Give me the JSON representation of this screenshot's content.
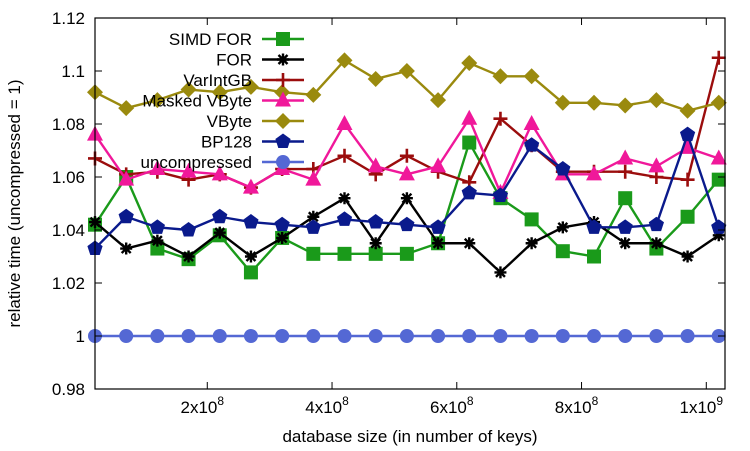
{
  "chart_data": {
    "type": "line",
    "xlabel": "database size (in number of keys)",
    "ylabel": "relative time (uncompressed = 1)",
    "xlim": [
      20000000,
      1030000000
    ],
    "ylim": [
      0.98,
      1.12
    ],
    "xticks": [
      {
        "value": 200000000,
        "mant": "2x10",
        "exp": "8"
      },
      {
        "value": 400000000,
        "mant": "4x10",
        "exp": "8"
      },
      {
        "value": 600000000,
        "mant": "6x10",
        "exp": "8"
      },
      {
        "value": 800000000,
        "mant": "8x10",
        "exp": "8"
      },
      {
        "value": 1000000000,
        "mant": "1x10",
        "exp": "9"
      }
    ],
    "yticks": [
      {
        "value": 0.98,
        "label": "0.98"
      },
      {
        "value": 1.0,
        "label": "1"
      },
      {
        "value": 1.02,
        "label": "1.02"
      },
      {
        "value": 1.04,
        "label": "1.04"
      },
      {
        "value": 1.06,
        "label": "1.06"
      },
      {
        "value": 1.08,
        "label": "1.08"
      },
      {
        "value": 1.1,
        "label": "1.1"
      },
      {
        "value": 1.12,
        "label": "1.12"
      }
    ],
    "grid": false,
    "legend_position": "top-left",
    "x": [
      20000000,
      70000000,
      120000000,
      170000000,
      220000000,
      270000000,
      320000000,
      370000000,
      420000000,
      470000000,
      520000000,
      570000000,
      620000000,
      670000000,
      720000000,
      770000000,
      820000000,
      870000000,
      920000000,
      970000000,
      1020000000
    ],
    "series": [
      {
        "name": "SIMD FOR",
        "marker": "square",
        "color": "#1a9a1a",
        "values": [
          1.042,
          1.06,
          1.033,
          1.029,
          1.038,
          1.024,
          1.037,
          1.031,
          1.031,
          1.031,
          1.031,
          1.035,
          1.073,
          1.052,
          1.044,
          1.032,
          1.03,
          1.052,
          1.033,
          1.045,
          1.059
        ]
      },
      {
        "name": "FOR",
        "marker": "asterisk",
        "color": "#000000",
        "values": [
          1.043,
          1.033,
          1.036,
          1.03,
          1.039,
          1.03,
          1.037,
          1.045,
          1.052,
          1.035,
          1.052,
          1.035,
          1.035,
          1.024,
          1.035,
          1.041,
          1.043,
          1.035,
          1.035,
          1.03,
          1.038
        ]
      },
      {
        "name": "VarIntGB",
        "marker": "plus",
        "color": "#9b0d0d",
        "values": [
          1.067,
          1.061,
          1.062,
          1.059,
          1.061,
          1.056,
          1.063,
          1.063,
          1.068,
          1.061,
          1.068,
          1.062,
          1.058,
          1.082,
          1.072,
          1.062,
          1.062,
          1.062,
          1.06,
          1.059,
          1.105
        ]
      },
      {
        "name": "Masked VByte",
        "marker": "triangle",
        "color": "#f0189a",
        "values": [
          1.076,
          1.059,
          1.063,
          1.062,
          1.061,
          1.056,
          1.063,
          1.059,
          1.08,
          1.064,
          1.061,
          1.064,
          1.082,
          1.054,
          1.08,
          1.061,
          1.061,
          1.067,
          1.064,
          1.071,
          1.067
        ]
      },
      {
        "name": "VByte",
        "marker": "diamond",
        "color": "#9a8a0e",
        "values": [
          1.092,
          1.086,
          1.089,
          1.093,
          1.092,
          1.094,
          1.092,
          1.091,
          1.104,
          1.097,
          1.1,
          1.089,
          1.103,
          1.098,
          1.098,
          1.088,
          1.088,
          1.087,
          1.089,
          1.085,
          1.088
        ]
      },
      {
        "name": "BP128",
        "marker": "pentagon",
        "color": "#0a1a8c",
        "values": [
          1.033,
          1.045,
          1.041,
          1.04,
          1.045,
          1.043,
          1.042,
          1.041,
          1.044,
          1.043,
          1.042,
          1.041,
          1.054,
          1.053,
          1.072,
          1.063,
          1.041,
          1.041,
          1.042,
          1.076,
          1.041
        ]
      },
      {
        "name": "uncompressed",
        "marker": "circle",
        "color": "#5468d4",
        "values": [
          1.0,
          1.0,
          1.0,
          1.0,
          1.0,
          1.0,
          1.0,
          1.0,
          1.0,
          1.0,
          1.0,
          1.0,
          1.0,
          1.0,
          1.0,
          1.0,
          1.0,
          1.0,
          1.0,
          1.0,
          1.0
        ]
      }
    ]
  }
}
